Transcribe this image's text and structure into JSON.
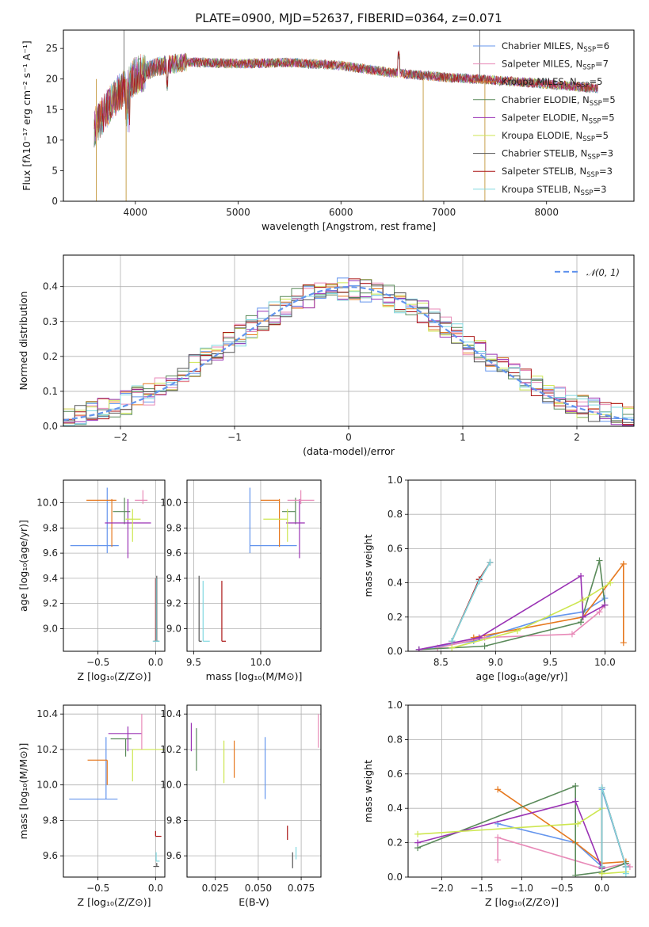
{
  "figure_title": "PLATE=0900, MJD=52637, FIBERID=0364, z=0.071",
  "colors": {
    "cm": "#6495ed",
    "sm": "#e88ab8",
    "km": "#e6781e",
    "ce": "#5a8a5a",
    "se": "#9a32b4",
    "ke": "#cde650",
    "cs": "#555555",
    "ss": "#aa1414",
    "ks": "#80d8e0",
    "grid": "#b0b0b0"
  },
  "chart_data": [
    {
      "id": "spectrum",
      "type": "line",
      "title": "PLATE=0900, MJD=52637, FIBERID=0364, z=0.071",
      "xlabel": "wavelength [Angstrom, rest frame]",
      "ylabel": "Flux [fλ10⁻¹⁷ erg cm⁻² s⁻¹ A⁻¹]",
      "xlim": [
        3300,
        8850
      ],
      "ylim": [
        0,
        28
      ],
      "xticks": [
        "4000",
        "5000",
        "6000",
        "7000",
        "8000"
      ],
      "yticks": [
        "0",
        "5",
        "10",
        "15",
        "20",
        "25"
      ],
      "grid": false,
      "legend": "upper-right",
      "continuum": {
        "x": [
          3600,
          3800,
          4000,
          4200,
          4500,
          5000,
          5500,
          6000,
          6500,
          7000,
          7500,
          8000,
          8500
        ],
        "y": [
          12,
          17,
          20.5,
          22,
          22.8,
          22.5,
          22.7,
          22.2,
          21,
          20.3,
          19.8,
          19.2,
          18.4
        ]
      },
      "spikes": [
        {
          "x": 3620,
          "y": 0
        },
        {
          "x": 3910,
          "y": 0
        },
        {
          "x": 6800,
          "y": 0
        },
        {
          "x": 7400,
          "y": 0
        },
        {
          "x": 3890,
          "y": 28
        },
        {
          "x": 7350,
          "y": 28
        }
      ],
      "legend_entries": [
        {
          "label": "Chabrier MILES, N",
          "sub": "SSP",
          "suffix": "=6"
        },
        {
          "label": "Salpeter MILES, N",
          "sub": "SSP",
          "suffix": "=7"
        },
        {
          "label": "Kroupa MILES, N",
          "sub": "SSP",
          "suffix": "=5"
        },
        {
          "label": "Chabrier ELODIE, N",
          "sub": "SSP",
          "suffix": "=5"
        },
        {
          "label": "Salpeter ELODIE, N",
          "sub": "SSP",
          "suffix": "=5"
        },
        {
          "label": "Kroupa ELODIE, N",
          "sub": "SSP",
          "suffix": "=5"
        },
        {
          "label": "Chabrier STELIB, N",
          "sub": "SSP",
          "suffix": "=3"
        },
        {
          "label": "Salpeter STELIB, N",
          "sub": "SSP",
          "suffix": "=3"
        },
        {
          "label": "Kroupa STELIB, N",
          "sub": "SSP",
          "suffix": "=3"
        }
      ]
    },
    {
      "id": "residuals",
      "type": "step-histogram",
      "xlabel": "(data-model)/error",
      "ylabel": "Normed distribution",
      "xlim": [
        -2.5,
        2.5
      ],
      "ylim": [
        0,
        0.49
      ],
      "xticks": [
        "−2",
        "−1",
        "0",
        "1",
        "2"
      ],
      "yticks": [
        "0.0",
        "0.1",
        "0.2",
        "0.3",
        "0.4"
      ],
      "grid": true,
      "legend": "upper-right",
      "reference_label": "𝒩(0, 1)",
      "bin_width": 0.1,
      "hist_amplitude": 0.395,
      "hist_sigma": 1.04
    },
    {
      "id": "age-z",
      "type": "errorbar",
      "xlabel": "Z [log₁₀(Z/Z⊙)]",
      "ylabel": "age  [log₁₀(age/yr)]",
      "xlim": [
        -0.8,
        0.08
      ],
      "ylim": [
        8.82,
        10.18
      ],
      "xticks": [
        "−0.5",
        "0.0"
      ],
      "yticks": [
        "9.0",
        "9.2",
        "9.4",
        "9.6",
        "9.8",
        "10.0"
      ],
      "grid": true,
      "points": [
        {
          "c": "cm",
          "x": -0.42,
          "y": 9.66,
          "xe": [
            0.32,
            0.1
          ],
          "ye": [
            0.06,
            0.46
          ]
        },
        {
          "c": "km",
          "x": -0.38,
          "y": 10.02,
          "xe": [
            0.22,
            0.04
          ],
          "ye": [
            0.37,
            0.01
          ]
        },
        {
          "c": "ce",
          "x": -0.27,
          "y": 9.93,
          "xe": [
            0.1,
            0.05
          ],
          "ye": [
            0.1,
            0.11
          ]
        },
        {
          "c": "se",
          "x": -0.24,
          "y": 9.84,
          "xe": [
            0.2,
            0.2
          ],
          "ye": [
            0.28,
            0.19
          ]
        },
        {
          "c": "ke",
          "x": -0.2,
          "y": 9.87,
          "xe": [
            0.06,
            0.07
          ],
          "ye": [
            0.18,
            0.08
          ]
        },
        {
          "c": "sm",
          "x": -0.11,
          "y": 10.02,
          "xe": [
            0.07,
            0.04
          ],
          "ye": [
            0.03,
            0.08
          ]
        },
        {
          "c": "ss",
          "x": 0.0,
          "y": 8.9,
          "xe": [
            0.02,
            0.02
          ],
          "ye": [
            0.0,
            0.5
          ]
        },
        {
          "c": "cs",
          "x": 0.01,
          "y": 8.9,
          "xe": [
            0.02,
            0.02
          ],
          "ye": [
            0.0,
            0.52
          ]
        },
        {
          "c": "ks",
          "x": 0.005,
          "y": 8.9,
          "xe": [
            0.03,
            0.03
          ],
          "ye": [
            0.0,
            0.5
          ]
        }
      ]
    },
    {
      "id": "age-mass",
      "type": "errorbar",
      "xlabel": "mass [log₁₀(M/M⊙)]",
      "ylabel": "",
      "xlim": [
        9.45,
        10.45
      ],
      "ylim": [
        8.82,
        10.18
      ],
      "xticks": [
        "9.5",
        "10.0"
      ],
      "yticks": [
        "9.0",
        "9.2",
        "9.4",
        "9.6",
        "9.8",
        "10.0"
      ],
      "grid": true,
      "points": [
        {
          "c": "cm",
          "x": 9.92,
          "y": 9.66,
          "xe": [
            0.0,
            0.35
          ],
          "ye": [
            0.06,
            0.46
          ]
        },
        {
          "c": "km",
          "x": 10.14,
          "y": 10.02,
          "xe": [
            0.14,
            0.0
          ],
          "ye": [
            0.37,
            0.01
          ]
        },
        {
          "c": "ce",
          "x": 10.26,
          "y": 9.93,
          "xe": [
            0.1,
            0.0
          ],
          "ye": [
            0.1,
            0.11
          ]
        },
        {
          "c": "se",
          "x": 10.29,
          "y": 9.84,
          "xe": [
            0.1,
            0.04
          ],
          "ye": [
            0.28,
            0.19
          ]
        },
        {
          "c": "ke",
          "x": 10.2,
          "y": 9.87,
          "xe": [
            0.18,
            0.0
          ],
          "ye": [
            0.18,
            0.08
          ]
        },
        {
          "c": "sm",
          "x": 10.3,
          "y": 10.02,
          "xe": [
            0.1,
            0.1
          ],
          "ye": [
            0.03,
            0.08
          ]
        },
        {
          "c": "ss",
          "x": 9.71,
          "y": 8.9,
          "xe": [
            0.0,
            0.03
          ],
          "ye": [
            0.0,
            0.48
          ]
        },
        {
          "c": "cs",
          "x": 9.54,
          "y": 8.9,
          "xe": [
            0.0,
            0.02
          ],
          "ye": [
            0.0,
            0.52
          ]
        },
        {
          "c": "ks",
          "x": 9.57,
          "y": 8.9,
          "xe": [
            0.0,
            0.05
          ],
          "ye": [
            0.0,
            0.48
          ]
        }
      ]
    },
    {
      "id": "mw-age",
      "type": "line",
      "xlabel": "age  [log₁₀(age/yr)]",
      "ylabel": "mass weight",
      "xlim": [
        8.2,
        10.28
      ],
      "ylim": [
        0,
        1.0
      ],
      "xticks": [
        "8.5",
        "9.0",
        "9.5",
        "10.0"
      ],
      "yticks": [
        "0.0",
        "0.2",
        "0.4",
        "0.6",
        "0.8",
        "1.0"
      ],
      "grid": true,
      "series": [
        {
          "c": "cm",
          "x": [
            8.3,
            8.8,
            9.5,
            9.8,
            10.0
          ],
          "y": [
            0.01,
            0.06,
            0.2,
            0.23,
            0.31
          ]
        },
        {
          "c": "sm",
          "x": [
            8.47,
            8.9,
            9.7,
            9.95,
            10.0
          ],
          "y": [
            0.02,
            0.08,
            0.1,
            0.23,
            0.27
          ]
        },
        {
          "c": "km",
          "x": [
            8.8,
            9.8,
            10.17,
            10.17
          ],
          "y": [
            0.08,
            0.2,
            0.51,
            0.05
          ]
        },
        {
          "c": "ce",
          "x": [
            8.3,
            8.9,
            9.78,
            9.95,
            10.0
          ],
          "y": [
            0.01,
            0.03,
            0.17,
            0.53,
            0.27
          ]
        },
        {
          "c": "se",
          "x": [
            8.3,
            8.85,
            9.78,
            9.8,
            10.0
          ],
          "y": [
            0.01,
            0.08,
            0.44,
            0.2,
            0.27
          ]
        },
        {
          "c": "ke",
          "x": [
            8.6,
            9.2,
            9.8,
            10.05
          ],
          "y": [
            0.02,
            0.12,
            0.3,
            0.4
          ]
        },
        {
          "c": "cs",
          "x": [
            8.6,
            8.85,
            8.95
          ],
          "y": [
            0.06,
            0.41,
            0.52
          ]
        },
        {
          "c": "ss",
          "x": [
            8.6,
            8.85,
            8.95
          ],
          "y": [
            0.06,
            0.42,
            0.52
          ]
        },
        {
          "c": "ks",
          "x": [
            8.6,
            8.85,
            8.95
          ],
          "y": [
            0.06,
            0.41,
            0.52
          ]
        }
      ]
    },
    {
      "id": "mass-z",
      "type": "errorbar",
      "xlabel": "Z [log₁₀(Z/Z⊙)]",
      "ylabel": "mass [log₁₀(M/M⊙)]",
      "xlim": [
        -0.8,
        0.08
      ],
      "ylim": [
        9.48,
        10.45
      ],
      "xticks": [
        "−0.5",
        "0.0"
      ],
      "yticks": [
        "9.6",
        "9.8",
        "10.0",
        "10.2",
        "10.4"
      ],
      "grid": true,
      "points": [
        {
          "c": "cm",
          "x": -0.43,
          "y": 9.92,
          "xe": [
            0.32,
            0.1
          ],
          "ye": [
            0.0,
            0.35
          ]
        },
        {
          "c": "km",
          "x": -0.42,
          "y": 10.14,
          "xe": [
            0.17,
            0.0
          ],
          "ye": [
            0.14,
            0.0
          ]
        },
        {
          "c": "ce",
          "x": -0.26,
          "y": 10.26,
          "xe": [
            0.13,
            0.05
          ],
          "ye": [
            0.1,
            0.0
          ]
        },
        {
          "c": "se",
          "x": -0.24,
          "y": 10.29,
          "xe": [
            0.17,
            0.12
          ],
          "ye": [
            0.1,
            0.04
          ]
        },
        {
          "c": "ke",
          "x": -0.2,
          "y": 10.2,
          "xe": [
            0.0,
            0.3
          ],
          "ye": [
            0.18,
            0.0
          ]
        },
        {
          "c": "sm",
          "x": -0.12,
          "y": 10.3,
          "xe": [
            0.0,
            0.0
          ],
          "ye": [
            0.1,
            0.1
          ]
        },
        {
          "c": "ss",
          "x": 0.0,
          "y": 9.71,
          "xe": [
            0.0,
            0.05
          ],
          "ye": [
            0.0,
            0.03
          ]
        },
        {
          "c": "cs",
          "x": 0.01,
          "y": 9.54,
          "xe": [
            0.03,
            0.02
          ],
          "ye": [
            0.0,
            0.02
          ]
        },
        {
          "c": "ks",
          "x": 0.005,
          "y": 9.57,
          "xe": [
            0.0,
            0.03
          ],
          "ye": [
            0.0,
            0.05
          ]
        }
      ]
    },
    {
      "id": "mass-ebv",
      "type": "errorbar",
      "xlabel": "E(B-V)",
      "ylabel": "",
      "xlim": [
        0.0085,
        0.0865
      ],
      "ylim": [
        9.48,
        10.45
      ],
      "xticks": [
        "0.025",
        "0.050",
        "0.075"
      ],
      "yticks": [
        "9.6",
        "9.8",
        "10.0",
        "10.2",
        "10.4"
      ],
      "grid": true,
      "points": [
        {
          "c": "se",
          "x": 0.011,
          "y": 10.29,
          "xe": [
            0,
            0
          ],
          "ye": [
            0.1,
            0.06
          ]
        },
        {
          "c": "ce",
          "x": 0.014,
          "y": 10.26,
          "xe": [
            0,
            0
          ],
          "ye": [
            0.18,
            0.06
          ]
        },
        {
          "c": "ke",
          "x": 0.03,
          "y": 10.2,
          "xe": [
            0,
            0
          ],
          "ye": [
            0.19,
            0.05
          ]
        },
        {
          "c": "km",
          "x": 0.036,
          "y": 10.14,
          "xe": [
            0,
            0
          ],
          "ye": [
            0.1,
            0.11
          ]
        },
        {
          "c": "cm",
          "x": 0.054,
          "y": 10.1,
          "xe": [
            0,
            0
          ],
          "ye": [
            0.18,
            0.17
          ]
        },
        {
          "c": "ss",
          "x": 0.067,
          "y": 9.73,
          "xe": [
            0,
            0
          ],
          "ye": [
            0.04,
            0.04
          ]
        },
        {
          "c": "cs",
          "x": 0.07,
          "y": 9.57,
          "xe": [
            0,
            0
          ],
          "ye": [
            0.04,
            0.05
          ]
        },
        {
          "c": "ks",
          "x": 0.072,
          "y": 9.6,
          "xe": [
            0,
            0
          ],
          "ye": [
            0.02,
            0.05
          ]
        },
        {
          "c": "sm",
          "x": 0.085,
          "y": 10.3,
          "xe": [
            0,
            0
          ],
          "ye": [
            0.09,
            0.1
          ]
        }
      ]
    },
    {
      "id": "mw-z",
      "type": "line",
      "xlabel": "Z [log₁₀(Z/Z⊙)]",
      "ylabel": "mass weight",
      "xlim": [
        -2.42,
        0.42
      ],
      "ylim": [
        0,
        1.0
      ],
      "xticks": [
        "−2.0",
        "−1.5",
        "−1.0",
        "−0.5",
        "0.0"
      ],
      "yticks": [
        "0.0",
        "0.2",
        "0.4",
        "0.6",
        "0.8",
        "1.0"
      ],
      "grid": true,
      "series": [
        {
          "c": "cm",
          "x": [
            -1.3,
            -0.33,
            -0.0,
            0.0,
            0.3
          ],
          "y": [
            0.31,
            0.2,
            0.06,
            0.51,
            0.06
          ]
        },
        {
          "c": "sm",
          "x": [
            -1.3,
            -1.3,
            0.0,
            0.3,
            0.35
          ],
          "y": [
            0.1,
            0.23,
            0.05,
            0.08,
            0.06
          ]
        },
        {
          "c": "km",
          "x": [
            -1.3,
            -0.33,
            0.0,
            0.3
          ],
          "y": [
            0.51,
            0.2,
            0.08,
            0.09
          ]
        },
        {
          "c": "ce",
          "x": [
            -2.3,
            -0.33,
            -0.33,
            0.0,
            0.3
          ],
          "y": [
            0.17,
            0.53,
            0.01,
            0.03,
            0.08
          ]
        },
        {
          "c": "se",
          "x": [
            -2.3,
            -0.33,
            0.0
          ],
          "y": [
            0.2,
            0.44,
            0.05
          ]
        },
        {
          "c": "ke",
          "x": [
            -2.3,
            -0.3,
            0.0,
            0.0,
            0.3
          ],
          "y": [
            0.25,
            0.31,
            0.4,
            0.02,
            0.03
          ]
        },
        {
          "c": "cs",
          "x": [
            0.0,
            0.0,
            0.3
          ],
          "y": [
            0.06,
            0.52,
            0.06
          ]
        },
        {
          "c": "ss",
          "x": [
            0.0,
            0.0,
            0.3
          ],
          "y": [
            0.06,
            0.52,
            0.06
          ]
        },
        {
          "c": "ks",
          "x": [
            0.0,
            0.0,
            0.3,
            0.3
          ],
          "y": [
            0.06,
            0.52,
            0.06,
            0.02
          ]
        }
      ]
    }
  ]
}
